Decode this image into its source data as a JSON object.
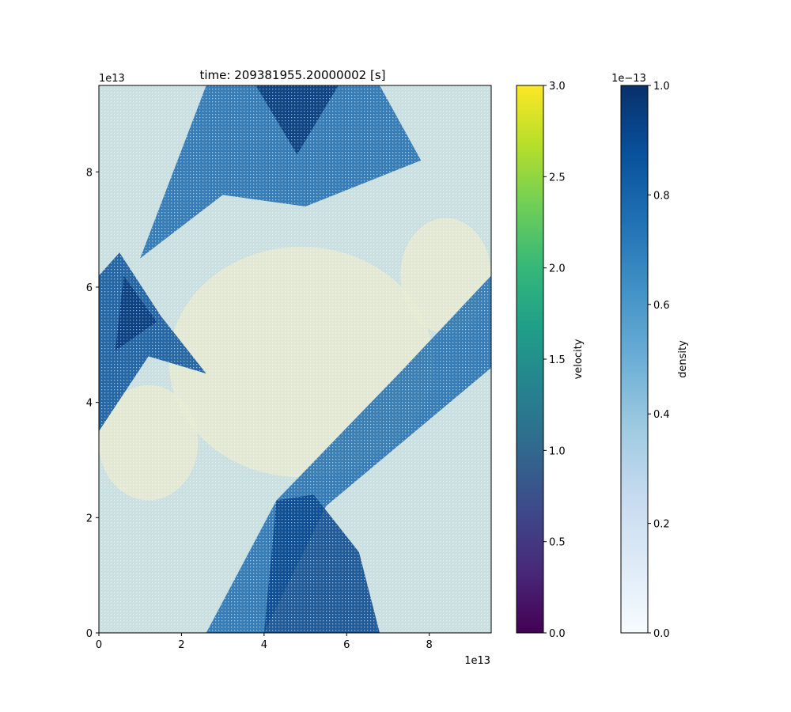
{
  "chart_data": [
    {
      "type": "heatmap",
      "title": "time: 209381955.20000002 [s]",
      "xlabel": "",
      "ylabel": "",
      "x_offset_label": "1e13",
      "y_offset_label": "1e13",
      "xlim": [
        0,
        9.5
      ],
      "ylim": [
        0,
        9.5
      ],
      "x_ticks": [
        0,
        2,
        4,
        6,
        8
      ],
      "y_ticks": [
        0,
        2,
        4,
        6,
        8
      ],
      "description_fields": {
        "density_bands": [
          {
            "points": [
              [
                2.6,
                0
              ],
              [
                4.0,
                0
              ],
              [
                5.5,
                2.2
              ],
              [
                9.5,
                4.6
              ],
              [
                9.5,
                6.2
              ],
              [
                7.4,
                4.6
              ],
              [
                4.3,
                2.3
              ]
            ],
            "value": 0.75
          },
          {
            "points": [
              [
                4.0,
                0
              ],
              [
                6.8,
                0
              ],
              [
                6.3,
                1.4
              ],
              [
                5.2,
                2.4
              ],
              [
                4.3,
                2.3
              ]
            ],
            "value": 0.9
          },
          {
            "points": [
              [
                2.6,
                9.5
              ],
              [
                6.8,
                9.5
              ],
              [
                7.8,
                8.2
              ],
              [
                5.0,
                7.4
              ],
              [
                3.0,
                7.6
              ],
              [
                1.0,
                6.5
              ]
            ],
            "value": 0.75
          },
          {
            "points": [
              [
                3.8,
                9.5
              ],
              [
                5.8,
                9.5
              ],
              [
                4.8,
                8.3
              ]
            ],
            "value": 0.95
          },
          {
            "points": [
              [
                0,
                3.5
              ],
              [
                0,
                6.2
              ],
              [
                0.5,
                6.6
              ],
              [
                1.5,
                5.5
              ],
              [
                2.6,
                4.5
              ],
              [
                1.2,
                4.8
              ]
            ],
            "value": 0.85
          },
          {
            "points": [
              [
                0.4,
                4.9
              ],
              [
                0.6,
                6.2
              ],
              [
                1.4,
                5.4
              ]
            ],
            "value": 0.95
          }
        ],
        "light_regions": [
          {
            "cx": 4.9,
            "cy": 4.7,
            "rx": 3.2,
            "ry": 2.0,
            "value": 0.05
          },
          {
            "cx": 1.2,
            "cy": 3.3,
            "rx": 1.2,
            "ry": 1.0,
            "value": 0.08
          },
          {
            "cx": 8.4,
            "cy": 6.2,
            "rx": 1.1,
            "ry": 1.0,
            "value": 0.08
          }
        ]
      }
    },
    {
      "type": "colorbar",
      "label": "velocity",
      "range": [
        0,
        3
      ],
      "ticks": [
        "0.0",
        "0.5",
        "1.0",
        "1.5",
        "2.0",
        "2.5",
        "3.0"
      ],
      "tick_values": [
        0,
        0.5,
        1.0,
        1.5,
        2.0,
        2.5,
        3.0
      ],
      "colormap": [
        "#440154",
        "#482878",
        "#3e4989",
        "#31688e",
        "#26828e",
        "#1f9e89",
        "#35b779",
        "#6ece58",
        "#b5de2b",
        "#fde725"
      ]
    },
    {
      "type": "colorbar",
      "label": "density",
      "range": [
        0,
        1
      ],
      "offset_label": "1e−13",
      "ticks": [
        "0.0",
        "0.2",
        "0.4",
        "0.6",
        "0.8",
        "1.0"
      ],
      "tick_values": [
        0,
        0.2,
        0.4,
        0.6,
        0.8,
        1.0
      ],
      "colormap": [
        "#f7fbff",
        "#deebf7",
        "#c6dbef",
        "#9ecae1",
        "#6baed6",
        "#4292c6",
        "#2171b5",
        "#08519c",
        "#08306b"
      ]
    }
  ]
}
